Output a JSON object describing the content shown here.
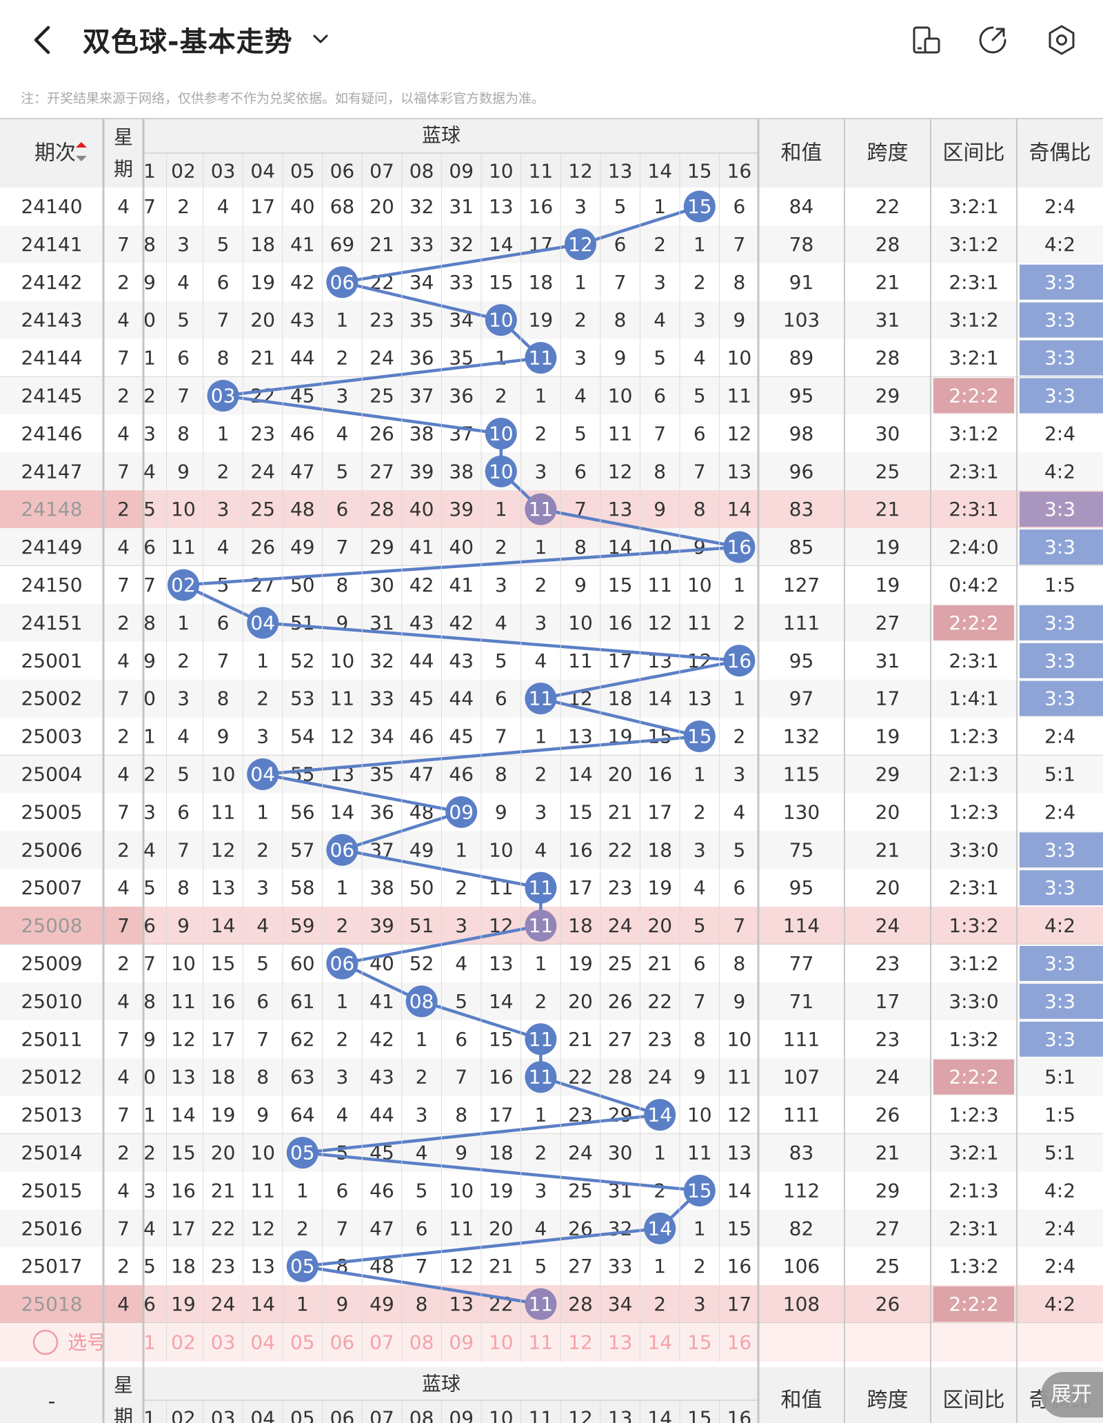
{
  "header": {
    "title": "双色球-基本走势",
    "note": "注：开奖结果来源于网络，仅供参考不作为兑奖依据。如有疑问，以福体彩官方数据为准。"
  },
  "table": {
    "col_issue": "期次",
    "col_week": [
      "星",
      "期"
    ],
    "col_blue": "蓝球",
    "col_sum": "和值",
    "col_span": "跨度",
    "col_zone": "区间比",
    "col_oddeven": "奇偶比",
    "blue_headers": [
      "01",
      "02",
      "03",
      "04",
      "05",
      "06",
      "07",
      "08",
      "09",
      "10",
      "11",
      "12",
      "13",
      "14",
      "15",
      "16"
    ],
    "select_label": "选号",
    "bottom_issue_placeholder": "-",
    "expand_label": "展开",
    "rows": [
      {
        "issue": "24140",
        "week": "4",
        "blue": 15,
        "omit": [
          7,
          2,
          4,
          17,
          40,
          68,
          20,
          32,
          31,
          13,
          16,
          3,
          5,
          1,
          0,
          6
        ],
        "sum": "84",
        "span": "22",
        "zone": "3:2:1",
        "oe": "2:4",
        "zh": "",
        "oh": ""
      },
      {
        "issue": "24141",
        "week": "7",
        "blue": 12,
        "omit": [
          8,
          3,
          5,
          18,
          41,
          69,
          21,
          33,
          32,
          14,
          17,
          0,
          6,
          2,
          1,
          7
        ],
        "sum": "78",
        "span": "28",
        "zone": "3:1:2",
        "oe": "4:2",
        "zh": "",
        "oh": ""
      },
      {
        "issue": "24142",
        "week": "2",
        "blue": 6,
        "omit": [
          9,
          4,
          6,
          19,
          42,
          0,
          22,
          34,
          33,
          15,
          18,
          1,
          7,
          3,
          2,
          8
        ],
        "sum": "91",
        "span": "21",
        "zone": "2:3:1",
        "oe": "3:3",
        "zh": "",
        "oh": "blue"
      },
      {
        "issue": "24143",
        "week": "4",
        "blue": 10,
        "omit": [
          10,
          5,
          7,
          20,
          43,
          1,
          23,
          35,
          34,
          0,
          19,
          2,
          8,
          4,
          3,
          9
        ],
        "sum": "103",
        "span": "31",
        "zone": "3:1:2",
        "oe": "3:3",
        "zh": "",
        "oh": "blue"
      },
      {
        "issue": "24144",
        "week": "7",
        "blue": 11,
        "omit": [
          11,
          6,
          8,
          21,
          44,
          2,
          24,
          36,
          35,
          1,
          0,
          3,
          9,
          5,
          4,
          10
        ],
        "sum": "89",
        "span": "28",
        "zone": "3:2:1",
        "oe": "3:3",
        "zh": "",
        "oh": "blue"
      },
      {
        "issue": "24145",
        "week": "2",
        "blue": 3,
        "omit": [
          12,
          7,
          0,
          22,
          45,
          3,
          25,
          37,
          36,
          2,
          1,
          4,
          10,
          6,
          5,
          11
        ],
        "sum": "95",
        "span": "29",
        "zone": "2:2:2",
        "oe": "3:3",
        "zh": "red",
        "oh": "blue"
      },
      {
        "issue": "24146",
        "week": "4",
        "blue": 10,
        "omit": [
          13,
          8,
          1,
          23,
          46,
          4,
          26,
          38,
          37,
          0,
          2,
          5,
          11,
          7,
          6,
          12
        ],
        "sum": "98",
        "span": "30",
        "zone": "3:1:2",
        "oe": "2:4",
        "zh": "",
        "oh": ""
      },
      {
        "issue": "24147",
        "week": "7",
        "blue": 10,
        "omit": [
          14,
          9,
          2,
          24,
          47,
          5,
          27,
          39,
          38,
          0,
          3,
          6,
          12,
          8,
          7,
          13
        ],
        "sum": "96",
        "span": "25",
        "zone": "2:3:1",
        "oe": "4:2",
        "zh": "",
        "oh": ""
      },
      {
        "issue": "24148",
        "week": "2",
        "blue": 11,
        "omit": [
          15,
          10,
          3,
          25,
          48,
          6,
          28,
          40,
          39,
          1,
          0,
          7,
          13,
          9,
          8,
          14
        ],
        "sum": "83",
        "span": "21",
        "zone": "2:3:1",
        "oe": "3:3",
        "zh": "",
        "oh": "blue",
        "hl": true
      },
      {
        "issue": "24149",
        "week": "4",
        "blue": 16,
        "omit": [
          16,
          11,
          4,
          26,
          49,
          7,
          29,
          41,
          40,
          2,
          1,
          8,
          14,
          10,
          9,
          0
        ],
        "sum": "85",
        "span": "19",
        "zone": "2:4:0",
        "oe": "3:3",
        "zh": "",
        "oh": "blue"
      },
      {
        "issue": "24150",
        "week": "7",
        "blue": 2,
        "omit": [
          17,
          0,
          5,
          27,
          50,
          8,
          30,
          42,
          41,
          3,
          2,
          9,
          15,
          11,
          10,
          1
        ],
        "sum": "127",
        "span": "19",
        "zone": "0:4:2",
        "oe": "1:5",
        "zh": "",
        "oh": ""
      },
      {
        "issue": "24151",
        "week": "2",
        "blue": 4,
        "omit": [
          18,
          1,
          6,
          0,
          51,
          9,
          31,
          43,
          42,
          4,
          3,
          10,
          16,
          12,
          11,
          2
        ],
        "sum": "111",
        "span": "27",
        "zone": "2:2:2",
        "oe": "3:3",
        "zh": "red",
        "oh": "blue"
      },
      {
        "issue": "25001",
        "week": "4",
        "blue": 16,
        "omit": [
          19,
          2,
          7,
          1,
          52,
          10,
          32,
          44,
          43,
          5,
          4,
          11,
          17,
          13,
          12,
          0
        ],
        "sum": "95",
        "span": "31",
        "zone": "2:3:1",
        "oe": "3:3",
        "zh": "",
        "oh": "blue"
      },
      {
        "issue": "25002",
        "week": "7",
        "blue": 11,
        "omit": [
          20,
          3,
          8,
          2,
          53,
          11,
          33,
          45,
          44,
          6,
          0,
          12,
          18,
          14,
          13,
          1
        ],
        "sum": "97",
        "span": "17",
        "zone": "1:4:1",
        "oe": "3:3",
        "zh": "",
        "oh": "blue"
      },
      {
        "issue": "25003",
        "week": "2",
        "blue": 15,
        "omit": [
          21,
          4,
          9,
          3,
          54,
          12,
          34,
          46,
          45,
          7,
          1,
          13,
          19,
          15,
          0,
          2
        ],
        "sum": "132",
        "span": "19",
        "zone": "1:2:3",
        "oe": "2:4",
        "zh": "",
        "oh": ""
      },
      {
        "issue": "25004",
        "week": "4",
        "blue": 4,
        "omit": [
          22,
          5,
          10,
          0,
          55,
          13,
          35,
          47,
          46,
          8,
          2,
          14,
          20,
          16,
          1,
          3
        ],
        "sum": "115",
        "span": "29",
        "zone": "2:1:3",
        "oe": "5:1",
        "zh": "",
        "oh": ""
      },
      {
        "issue": "25005",
        "week": "7",
        "blue": 9,
        "omit": [
          23,
          6,
          11,
          1,
          56,
          14,
          36,
          48,
          0,
          9,
          3,
          15,
          21,
          17,
          2,
          4
        ],
        "sum": "130",
        "span": "20",
        "zone": "1:2:3",
        "oe": "2:4",
        "zh": "",
        "oh": ""
      },
      {
        "issue": "25006",
        "week": "2",
        "blue": 6,
        "omit": [
          24,
          7,
          12,
          2,
          57,
          0,
          37,
          49,
          1,
          10,
          4,
          16,
          22,
          18,
          3,
          5
        ],
        "sum": "75",
        "span": "21",
        "zone": "3:3:0",
        "oe": "3:3",
        "zh": "",
        "oh": "blue"
      },
      {
        "issue": "25007",
        "week": "4",
        "blue": 11,
        "omit": [
          25,
          8,
          13,
          3,
          58,
          1,
          38,
          50,
          2,
          11,
          0,
          17,
          23,
          19,
          4,
          6
        ],
        "sum": "95",
        "span": "20",
        "zone": "2:3:1",
        "oe": "3:3",
        "zh": "",
        "oh": "blue"
      },
      {
        "issue": "25008",
        "week": "7",
        "blue": 11,
        "omit": [
          26,
          9,
          14,
          4,
          59,
          2,
          39,
          51,
          3,
          12,
          0,
          18,
          24,
          20,
          5,
          7
        ],
        "sum": "114",
        "span": "24",
        "zone": "1:3:2",
        "oe": "4:2",
        "zh": "",
        "oh": "",
        "hl": true
      },
      {
        "issue": "25009",
        "week": "2",
        "blue": 6,
        "omit": [
          27,
          10,
          15,
          5,
          60,
          0,
          40,
          52,
          4,
          13,
          1,
          19,
          25,
          21,
          6,
          8
        ],
        "sum": "77",
        "span": "23",
        "zone": "3:1:2",
        "oe": "3:3",
        "zh": "",
        "oh": "blue"
      },
      {
        "issue": "25010",
        "week": "4",
        "blue": 8,
        "omit": [
          28,
          11,
          16,
          6,
          61,
          1,
          41,
          0,
          5,
          14,
          2,
          20,
          26,
          22,
          7,
          9
        ],
        "sum": "71",
        "span": "17",
        "zone": "3:3:0",
        "oe": "3:3",
        "zh": "",
        "oh": "blue"
      },
      {
        "issue": "25011",
        "week": "7",
        "blue": 11,
        "omit": [
          29,
          12,
          17,
          7,
          62,
          2,
          42,
          1,
          6,
          15,
          0,
          21,
          27,
          23,
          8,
          10
        ],
        "sum": "111",
        "span": "23",
        "zone": "1:3:2",
        "oe": "3:3",
        "zh": "",
        "oh": "blue"
      },
      {
        "issue": "25012",
        "week": "4",
        "blue": 11,
        "omit": [
          30,
          13,
          18,
          8,
          63,
          3,
          43,
          2,
          7,
          16,
          0,
          22,
          28,
          24,
          9,
          11
        ],
        "sum": "107",
        "span": "24",
        "zone": "2:2:2",
        "oe": "5:1",
        "zh": "red",
        "oh": ""
      },
      {
        "issue": "25013",
        "week": "7",
        "blue": 14,
        "omit": [
          31,
          14,
          19,
          9,
          64,
          4,
          44,
          3,
          8,
          17,
          1,
          23,
          29,
          0,
          10,
          12
        ],
        "sum": "111",
        "span": "26",
        "zone": "1:2:3",
        "oe": "1:5",
        "zh": "",
        "oh": ""
      },
      {
        "issue": "25014",
        "week": "2",
        "blue": 5,
        "omit": [
          32,
          15,
          20,
          10,
          0,
          5,
          45,
          4,
          9,
          18,
          2,
          24,
          30,
          1,
          11,
          13
        ],
        "sum": "83",
        "span": "21",
        "zone": "3:2:1",
        "oe": "5:1",
        "zh": "",
        "oh": ""
      },
      {
        "issue": "25015",
        "week": "4",
        "blue": 15,
        "omit": [
          33,
          16,
          21,
          11,
          1,
          6,
          46,
          5,
          10,
          19,
          3,
          25,
          31,
          2,
          0,
          14
        ],
        "sum": "112",
        "span": "29",
        "zone": "2:1:3",
        "oe": "4:2",
        "zh": "",
        "oh": ""
      },
      {
        "issue": "25016",
        "week": "7",
        "blue": 14,
        "omit": [
          34,
          17,
          22,
          12,
          2,
          7,
          47,
          6,
          11,
          20,
          4,
          26,
          32,
          0,
          1,
          15
        ],
        "sum": "82",
        "span": "27",
        "zone": "2:3:1",
        "oe": "2:4",
        "zh": "",
        "oh": ""
      },
      {
        "issue": "25017",
        "week": "2",
        "blue": 5,
        "omit": [
          35,
          18,
          23,
          13,
          0,
          8,
          48,
          7,
          12,
          21,
          5,
          27,
          33,
          1,
          2,
          16
        ],
        "sum": "106",
        "span": "25",
        "zone": "1:3:2",
        "oe": "2:4",
        "zh": "",
        "oh": ""
      },
      {
        "issue": "25018",
        "week": "4",
        "blue": 11,
        "omit": [
          36,
          19,
          24,
          14,
          1,
          9,
          49,
          8,
          13,
          22,
          0,
          28,
          34,
          2,
          3,
          17
        ],
        "sum": "108",
        "span": "26",
        "zone": "2:2:2",
        "oe": "4:2",
        "zh": "red",
        "oh": "",
        "hl": true
      }
    ]
  },
  "colors": {
    "blue_ball": "#5b7fc6",
    "blue_ball_hl": "#9285b8",
    "line": "#5b7fc6",
    "highlight_row": "#f8dada",
    "select_row": "#fdeeee",
    "zone_red": "#dca3a8",
    "oe_blue": "#8ea4d6",
    "header_bg": "#f1f1f1"
  }
}
